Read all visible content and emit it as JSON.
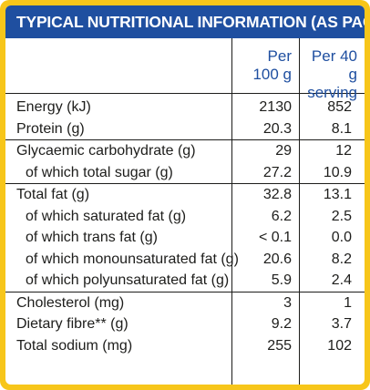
{
  "title": "TYPICAL NUTRITIONAL INFORMATION (AS PACKED)",
  "colors": {
    "border": "#f7c61a",
    "header_bg": "#1f4fa0",
    "header_text": "#ffffff",
    "col_header_text": "#1f4fa0"
  },
  "columns": {
    "per100": {
      "line1": "Per",
      "line2": "100 g"
    },
    "serving": {
      "line1": "Per 40 g",
      "line2": "serving"
    }
  },
  "rows": [
    {
      "label": "Energy (kJ)",
      "per100": "2130",
      "serving": "852"
    },
    {
      "label": "Protein (g)",
      "per100": "20.3",
      "serving": "8.1"
    },
    {
      "label": "Glycaemic carbohydrate (g)",
      "per100": "29",
      "serving": "12"
    },
    {
      "label": "of which total sugar (g)",
      "per100": "27.2",
      "serving": "10.9"
    },
    {
      "label": "Total fat (g)",
      "per100": "32.8",
      "serving": "13.1"
    },
    {
      "label": "of which saturated fat (g)",
      "per100": "6.2",
      "serving": "2.5"
    },
    {
      "label": "of which trans fat (g)",
      "per100": "< 0.1",
      "serving": "0.0"
    },
    {
      "label": "of which monounsaturated fat (g)",
      "per100": "20.6",
      "serving": "8.2"
    },
    {
      "label": "of which polyunsaturated fat (g)",
      "per100": "5.9",
      "serving": "2.4"
    },
    {
      "label": "Cholesterol (mg)",
      "per100": "3",
      "serving": "1"
    },
    {
      "label": "Dietary fibre** (g)",
      "per100": "9.2",
      "serving": "3.7"
    },
    {
      "label": "Total sodium (mg)",
      "per100": "255",
      "serving": "102"
    }
  ]
}
